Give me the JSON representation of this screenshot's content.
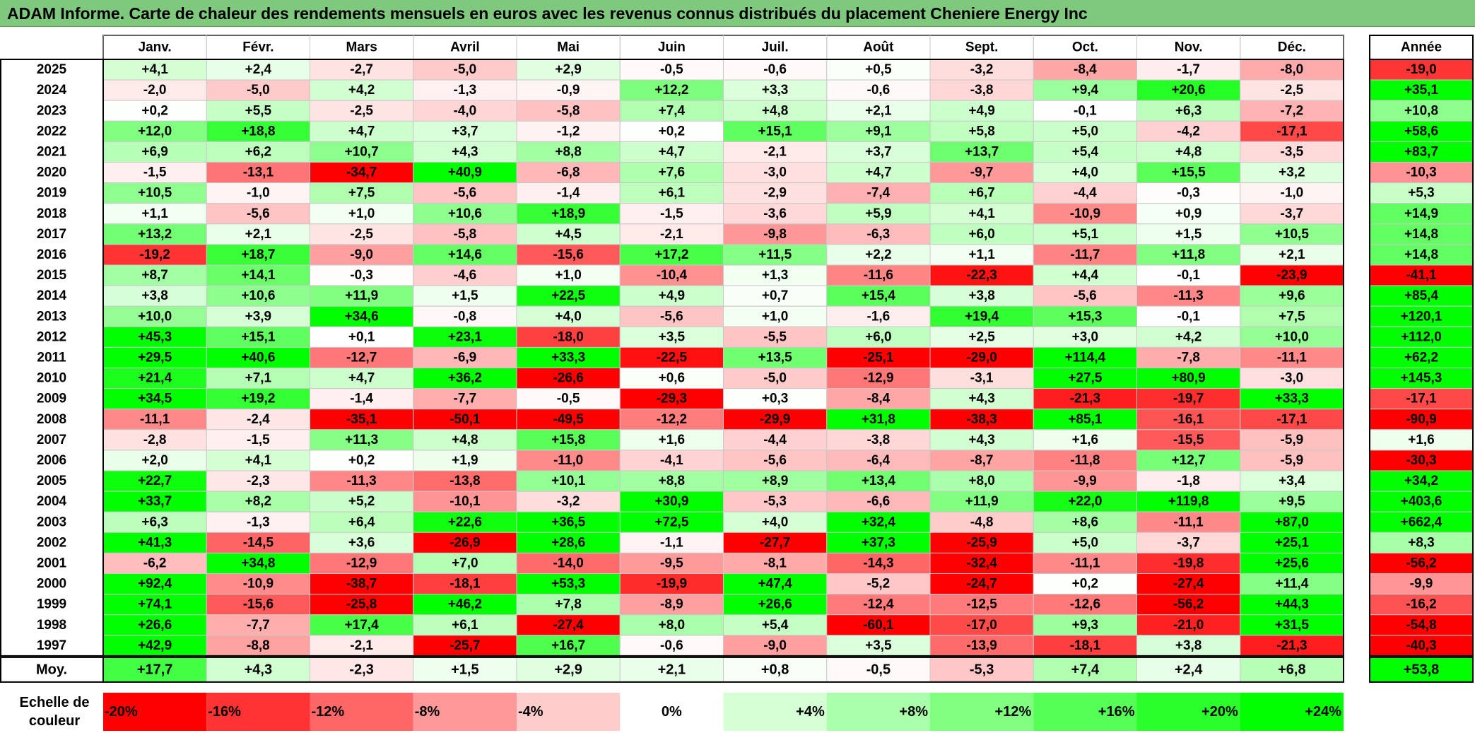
{
  "title": "ADAM Informe. Carte de chaleur des rendements mensuels en euros avec les revenus connus distribués du placement Cheniere Energy Inc",
  "chart_data": {
    "type": "heatmap",
    "columns": [
      "Janv.",
      "Févr.",
      "Mars",
      "Avril",
      "Mai",
      "Juin",
      "Juil.",
      "Août",
      "Sept.",
      "Oct.",
      "Nov.",
      "Déc."
    ],
    "year_header": "Année",
    "avg_label": "Moy.",
    "legend_label": "Echelle de couleur",
    "rows": [
      {
        "year": "2025",
        "values": [
          "+4,1",
          "+2,4",
          "-2,7",
          "-5,0",
          "+2,9",
          "-0,5",
          "-0,6",
          "+0,5",
          "-3,2",
          "-8,4",
          "-1,7",
          "-8,0"
        ],
        "annual": "-19,0"
      },
      {
        "year": "2024",
        "values": [
          "-2,0",
          "-5,0",
          "+4,2",
          "-1,3",
          "-0,9",
          "+12,2",
          "+3,3",
          "-0,6",
          "-3,8",
          "+9,4",
          "+20,6",
          "-2,5"
        ],
        "annual": "+35,1"
      },
      {
        "year": "2023",
        "values": [
          "+0,2",
          "+5,5",
          "-2,5",
          "-4,0",
          "-5,8",
          "+7,4",
          "+4,8",
          "+2,1",
          "+4,9",
          "-0,1",
          "+6,3",
          "-7,2"
        ],
        "annual": "+10,8"
      },
      {
        "year": "2022",
        "values": [
          "+12,0",
          "+18,8",
          "+4,7",
          "+3,7",
          "-1,2",
          "+0,2",
          "+15,1",
          "+9,1",
          "+5,8",
          "+5,0",
          "-4,2",
          "-17,1"
        ],
        "annual": "+58,6"
      },
      {
        "year": "2021",
        "values": [
          "+6,9",
          "+6,2",
          "+10,7",
          "+4,3",
          "+8,8",
          "+4,7",
          "-2,1",
          "+3,7",
          "+13,7",
          "+5,4",
          "+4,8",
          "-3,5"
        ],
        "annual": "+83,7"
      },
      {
        "year": "2020",
        "values": [
          "-1,5",
          "-13,1",
          "-34,7",
          "+40,9",
          "-6,8",
          "+7,6",
          "-3,0",
          "+4,7",
          "-9,7",
          "+4,0",
          "+15,5",
          "+3,2"
        ],
        "annual": "-10,3"
      },
      {
        "year": "2019",
        "values": [
          "+10,5",
          "-1,0",
          "+7,5",
          "-5,6",
          "-1,4",
          "+6,1",
          "-2,9",
          "-7,4",
          "+6,7",
          "-4,4",
          "-0,3",
          "-1,0"
        ],
        "annual": "+5,3"
      },
      {
        "year": "2018",
        "values": [
          "+1,1",
          "-5,6",
          "+1,0",
          "+10,6",
          "+18,9",
          "-1,5",
          "-3,6",
          "+5,9",
          "+4,1",
          "-10,9",
          "+0,9",
          "-3,7"
        ],
        "annual": "+14,9"
      },
      {
        "year": "2017",
        "values": [
          "+13,2",
          "+2,1",
          "-2,5",
          "-5,8",
          "+4,5",
          "-2,1",
          "-9,8",
          "-6,3",
          "+6,0",
          "+5,1",
          "+1,5",
          "+10,5"
        ],
        "annual": "+14,8"
      },
      {
        "year": "2016",
        "values": [
          "-19,2",
          "+18,7",
          "-9,0",
          "+14,6",
          "-15,6",
          "+17,2",
          "+11,5",
          "+2,2",
          "+1,1",
          "-11,7",
          "+11,8",
          "+2,1"
        ],
        "annual": "+14,8"
      },
      {
        "year": "2015",
        "values": [
          "+8,7",
          "+14,1",
          "-0,3",
          "-4,6",
          "+1,0",
          "-10,4",
          "+1,3",
          "-11,6",
          "-22,3",
          "+4,4",
          "-0,1",
          "-23,9"
        ],
        "annual": "-41,1"
      },
      {
        "year": "2014",
        "values": [
          "+3,8",
          "+10,6",
          "+11,9",
          "+1,5",
          "+22,5",
          "+4,9",
          "+0,7",
          "+15,4",
          "+3,8",
          "-5,6",
          "-11,3",
          "+9,6"
        ],
        "annual": "+85,4"
      },
      {
        "year": "2013",
        "values": [
          "+10,0",
          "+3,9",
          "+34,6",
          "-0,8",
          "+4,0",
          "-5,6",
          "+1,0",
          "-1,6",
          "+19,4",
          "+15,3",
          "-0,1",
          "+7,5"
        ],
        "annual": "+120,1"
      },
      {
        "year": "2012",
        "values": [
          "+45,3",
          "+15,1",
          "+0,1",
          "+23,1",
          "-18,0",
          "+3,5",
          "-5,5",
          "+6,0",
          "+2,5",
          "+3,0",
          "+4,2",
          "+10,0"
        ],
        "annual": "+112,0"
      },
      {
        "year": "2011",
        "values": [
          "+29,5",
          "+40,6",
          "-12,7",
          "-6,9",
          "+33,3",
          "-22,5",
          "+13,5",
          "-25,1",
          "-29,0",
          "+114,4",
          "-7,8",
          "-11,1"
        ],
        "annual": "+62,2"
      },
      {
        "year": "2010",
        "values": [
          "+21,4",
          "+7,1",
          "+4,7",
          "+36,2",
          "-26,6",
          "+0,6",
          "-5,0",
          "-12,9",
          "-3,1",
          "+27,5",
          "+80,9",
          "-3,0"
        ],
        "annual": "+145,3"
      },
      {
        "year": "2009",
        "values": [
          "+34,5",
          "+19,2",
          "-1,4",
          "-7,7",
          "-0,5",
          "-29,3",
          "+0,3",
          "-8,4",
          "+4,3",
          "-21,3",
          "-19,7",
          "+33,3"
        ],
        "annual": "-17,1"
      },
      {
        "year": "2008",
        "values": [
          "-11,1",
          "-2,4",
          "-35,1",
          "-50,1",
          "-49,5",
          "-12,2",
          "-29,9",
          "+31,8",
          "-38,3",
          "+85,1",
          "-16,1",
          "-17,1"
        ],
        "annual": "-90,9"
      },
      {
        "year": "2007",
        "values": [
          "-2,8",
          "-1,5",
          "+11,3",
          "+4,8",
          "+15,8",
          "+1,6",
          "-4,4",
          "-3,8",
          "+4,3",
          "+1,6",
          "-15,5",
          "-5,9"
        ],
        "annual": "+1,6"
      },
      {
        "year": "2006",
        "values": [
          "+2,0",
          "+4,1",
          "+0,2",
          "+1,9",
          "-11,0",
          "-4,1",
          "-5,6",
          "-6,4",
          "-8,7",
          "-11,8",
          "+12,7",
          "-5,9"
        ],
        "annual": "-30,3"
      },
      {
        "year": "2005",
        "values": [
          "+22,7",
          "-2,3",
          "-11,3",
          "-13,8",
          "+10,1",
          "+8,8",
          "+8,9",
          "+13,4",
          "+8,0",
          "-9,9",
          "-1,8",
          "+3,4"
        ],
        "annual": "+34,2"
      },
      {
        "year": "2004",
        "values": [
          "+33,7",
          "+8,2",
          "+5,2",
          "-10,1",
          "-3,2",
          "+30,9",
          "-5,3",
          "-6,6",
          "+11,9",
          "+22,0",
          "+119,8",
          "+9,5"
        ],
        "annual": "+403,6"
      },
      {
        "year": "2003",
        "values": [
          "+6,3",
          "-1,3",
          "+6,4",
          "+22,6",
          "+36,5",
          "+72,5",
          "+4,0",
          "+32,4",
          "-4,8",
          "+8,6",
          "-11,1",
          "+87,0"
        ],
        "annual": "+662,4"
      },
      {
        "year": "2002",
        "values": [
          "+41,3",
          "-14,5",
          "+3,6",
          "-26,9",
          "+28,6",
          "-1,1",
          "-27,7",
          "+37,3",
          "-25,9",
          "+5,0",
          "-3,7",
          "+25,1"
        ],
        "annual": "+8,3"
      },
      {
        "year": "2001",
        "values": [
          "-6,2",
          "+34,8",
          "-12,9",
          "+7,0",
          "-14,0",
          "-9,5",
          "-8,1",
          "-14,3",
          "-32,4",
          "-11,1",
          "-19,8",
          "+25,6"
        ],
        "annual": "-56,2"
      },
      {
        "year": "2000",
        "values": [
          "+92,4",
          "-10,9",
          "-38,7",
          "-18,1",
          "+53,3",
          "-19,9",
          "+47,4",
          "-5,2",
          "-24,7",
          "+0,2",
          "-27,4",
          "+11,4"
        ],
        "annual": "-9,9"
      },
      {
        "year": "1999",
        "values": [
          "+74,1",
          "-15,6",
          "-25,8",
          "+46,2",
          "+7,8",
          "-8,9",
          "+26,6",
          "-12,4",
          "-12,5",
          "-12,6",
          "-56,2",
          "+44,3"
        ],
        "annual": "-16,2"
      },
      {
        "year": "1998",
        "values": [
          "+26,6",
          "-7,7",
          "+17,4",
          "+6,1",
          "-27,4",
          "+8,0",
          "+5,4",
          "-60,1",
          "-17,0",
          "+9,3",
          "-21,0",
          "+31,5"
        ],
        "annual": "-54,8"
      },
      {
        "year": "1997",
        "values": [
          "+42,9",
          "-8,8",
          "-2,1",
          "-25,7",
          "+16,7",
          "-0,6",
          "-9,0",
          "+3,5",
          "-13,9",
          "-18,1",
          "+3,8",
          "-21,3"
        ],
        "annual": "-40,3"
      }
    ],
    "averages": [
      "+17,7",
      "+4,3",
      "-2,3",
      "+1,5",
      "+2,9",
      "+2,1",
      "+0,8",
      "-0,5",
      "-5,3",
      "+7,4",
      "+2,4",
      "+6,8"
    ],
    "average_annual": "+53,8",
    "legend": [
      {
        "label": "-20%",
        "value": -20,
        "color": "#ff0000"
      },
      {
        "label": "-16%",
        "value": -16,
        "color": "#ff3333"
      },
      {
        "label": "-12%",
        "value": -12,
        "color": "#ff6666"
      },
      {
        "label": "-8%",
        "value": -8,
        "color": "#ff9999"
      },
      {
        "label": "-4%",
        "value": -4,
        "color": "#ffcccc"
      },
      {
        "label": "0%",
        "value": 0,
        "color": "#ffffff"
      },
      {
        "label": "+4%",
        "value": 4,
        "color": "#d5ffd5"
      },
      {
        "label": "+8%",
        "value": 8,
        "color": "#aaffaa"
      },
      {
        "label": "+12%",
        "value": 12,
        "color": "#80ff80"
      },
      {
        "label": "+16%",
        "value": 16,
        "color": "#55ff55"
      },
      {
        "label": "+20%",
        "value": 20,
        "color": "#2bff2b"
      },
      {
        "label": "+24%",
        "value": 24,
        "color": "#00ff00"
      }
    ],
    "colors": {
      "negative_max": "#ff0000",
      "neutral": "#ffffff",
      "positive_max": "#00ff00",
      "title_bar": "#7fc97f"
    }
  }
}
